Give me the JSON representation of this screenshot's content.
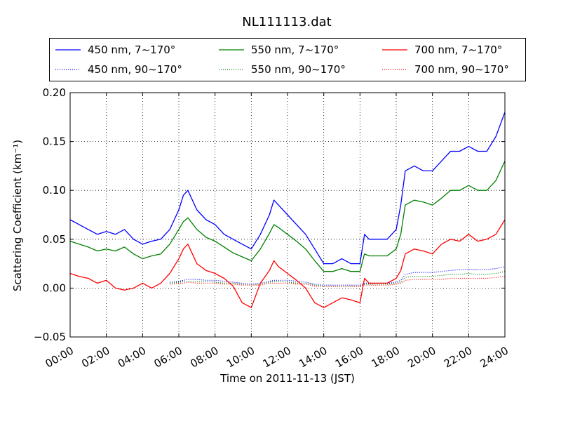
{
  "chart_data": {
    "type": "line",
    "title": "NL111113.dat",
    "xlabel": "Time on 2011-11-13 (JST)",
    "ylabel": "Scattering Coefficient (km⁻¹)",
    "x_unit": "hours",
    "xlim": [
      0,
      24
    ],
    "ylim": [
      -0.05,
      0.2
    ],
    "x_ticks": [
      0,
      2,
      4,
      6,
      8,
      10,
      12,
      14,
      16,
      18,
      20,
      22,
      24
    ],
    "x_tick_labels": [
      "00:00",
      "02:00",
      "04:00",
      "06:00",
      "08:00",
      "10:00",
      "12:00",
      "14:00",
      "16:00",
      "18:00",
      "20:00",
      "22:00",
      "24:00"
    ],
    "y_ticks": [
      -0.05,
      0.0,
      0.05,
      0.1,
      0.15,
      0.2
    ],
    "y_tick_labels": [
      "−0.05",
      "0.00",
      "0.05",
      "0.10",
      "0.15",
      "0.20"
    ],
    "grid": true,
    "legend_position": "top",
    "x": [
      0,
      0.5,
      1,
      1.5,
      2,
      2.5,
      3,
      3.5,
      4,
      4.5,
      5,
      5.5,
      6,
      6.25,
      6.5,
      7,
      7.5,
      8,
      8.5,
      9,
      9.5,
      10,
      10.5,
      11,
      11.25,
      11.5,
      12,
      12.5,
      13,
      13.5,
      14,
      14.5,
      15,
      15.5,
      16,
      16.25,
      16.5,
      17,
      17.5,
      18,
      18.25,
      18.5,
      19,
      19.5,
      20,
      20.5,
      21,
      21.5,
      22,
      22.5,
      23,
      23.5,
      24
    ],
    "series": [
      {
        "name": "450 nm, 7∼170°",
        "color": "#0000ff",
        "style": "solid",
        "values": [
          0.07,
          0.065,
          0.06,
          0.055,
          0.058,
          0.055,
          0.06,
          0.05,
          0.045,
          0.048,
          0.05,
          0.06,
          0.08,
          0.095,
          0.1,
          0.08,
          0.07,
          0.065,
          0.055,
          0.05,
          0.045,
          0.04,
          0.055,
          0.075,
          0.09,
          0.085,
          0.075,
          0.065,
          0.055,
          0.04,
          0.025,
          0.025,
          0.03,
          0.025,
          0.025,
          0.055,
          0.05,
          0.05,
          0.05,
          0.06,
          0.085,
          0.12,
          0.125,
          0.12,
          0.12,
          0.13,
          0.14,
          0.14,
          0.145,
          0.14,
          0.14,
          0.155,
          0.18
        ]
      },
      {
        "name": "450 nm, 90∼170°",
        "color": "#0000ff",
        "style": "dotted",
        "values": [
          null,
          null,
          null,
          null,
          null,
          null,
          null,
          null,
          null,
          null,
          null,
          0.006,
          0.007,
          0.008,
          0.009,
          0.009,
          0.008,
          0.008,
          0.007,
          0.006,
          0.005,
          0.004,
          0.005,
          0.007,
          0.008,
          0.008,
          0.008,
          0.007,
          0.006,
          0.004,
          0.003,
          0.003,
          0.003,
          0.003,
          0.003,
          0.005,
          0.005,
          0.005,
          0.005,
          0.006,
          0.008,
          0.014,
          0.016,
          0.016,
          0.016,
          0.017,
          0.018,
          0.019,
          0.019,
          0.019,
          0.019,
          0.02,
          0.022
        ]
      },
      {
        "name": "550 nm, 7∼170°",
        "color": "#008000",
        "style": "solid",
        "values": [
          0.048,
          0.045,
          0.042,
          0.038,
          0.04,
          0.038,
          0.042,
          0.035,
          0.03,
          0.033,
          0.035,
          0.045,
          0.06,
          0.068,
          0.072,
          0.06,
          0.052,
          0.048,
          0.042,
          0.036,
          0.032,
          0.028,
          0.04,
          0.056,
          0.065,
          0.062,
          0.055,
          0.048,
          0.04,
          0.028,
          0.017,
          0.017,
          0.02,
          0.017,
          0.017,
          0.035,
          0.033,
          0.033,
          0.033,
          0.04,
          0.055,
          0.085,
          0.09,
          0.088,
          0.085,
          0.092,
          0.1,
          0.1,
          0.105,
          0.1,
          0.1,
          0.11,
          0.13
        ]
      },
      {
        "name": "550 nm, 90∼170°",
        "color": "#008000",
        "style": "dotted",
        "values": [
          null,
          null,
          null,
          null,
          null,
          null,
          null,
          null,
          null,
          null,
          null,
          0.005,
          0.006,
          0.007,
          0.007,
          0.007,
          0.007,
          0.006,
          0.005,
          0.005,
          0.004,
          0.003,
          0.004,
          0.006,
          0.007,
          0.007,
          0.006,
          0.005,
          0.005,
          0.003,
          0.002,
          0.002,
          0.002,
          0.002,
          0.002,
          0.004,
          0.004,
          0.004,
          0.004,
          0.005,
          0.006,
          0.011,
          0.012,
          0.012,
          0.012,
          0.013,
          0.014,
          0.014,
          0.015,
          0.014,
          0.014,
          0.015,
          0.017
        ]
      },
      {
        "name": "700 nm, 7∼170°",
        "color": "#ff0000",
        "style": "solid",
        "values": [
          0.015,
          0.012,
          0.01,
          0.005,
          0.008,
          0.0,
          -0.002,
          0.0,
          0.005,
          0.0,
          0.005,
          0.015,
          0.03,
          0.04,
          0.045,
          0.025,
          0.018,
          0.015,
          0.01,
          0.002,
          -0.015,
          -0.02,
          0.005,
          0.018,
          0.028,
          0.022,
          0.015,
          0.008,
          0.0,
          -0.015,
          -0.02,
          -0.015,
          -0.01,
          -0.012,
          -0.015,
          0.01,
          0.005,
          0.005,
          0.005,
          0.01,
          0.018,
          0.035,
          0.04,
          0.038,
          0.035,
          0.045,
          0.05,
          0.048,
          0.055,
          0.048,
          0.05,
          0.055,
          0.07
        ]
      },
      {
        "name": "700 nm, 90∼170°",
        "color": "#ff0000",
        "style": "dotted",
        "values": [
          null,
          null,
          null,
          null,
          null,
          null,
          null,
          null,
          null,
          null,
          null,
          0.004,
          0.005,
          0.005,
          0.006,
          0.005,
          0.005,
          0.005,
          0.004,
          0.004,
          0.003,
          0.003,
          0.003,
          0.005,
          0.005,
          0.005,
          0.005,
          0.004,
          0.004,
          0.002,
          0.002,
          0.002,
          0.002,
          0.002,
          0.002,
          0.003,
          0.003,
          0.003,
          0.003,
          0.004,
          0.005,
          0.008,
          0.009,
          0.009,
          0.009,
          0.009,
          0.01,
          0.01,
          0.01,
          0.01,
          0.01,
          0.011,
          0.012
        ]
      }
    ]
  }
}
